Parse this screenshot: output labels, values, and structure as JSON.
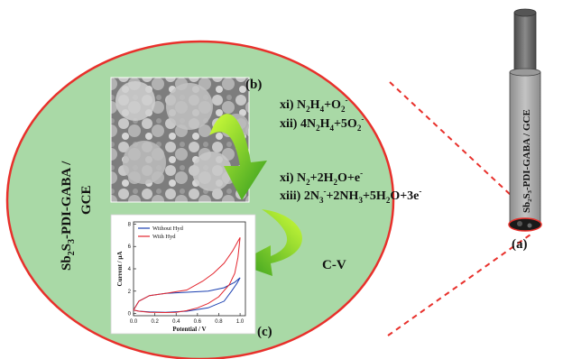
{
  "panel_labels": {
    "a": "(a)",
    "b": "(b)",
    "c": "(c)"
  },
  "electrode": {
    "label": "Sb₂S₃-PDI-GABA / GCE"
  },
  "ellipse": {
    "label_line1_prefix": "Sb",
    "label_line1_sub1": "2",
    "label_line1_mid": "S",
    "label_line1_sub2": "3",
    "label_line1_suffix": "-PDI-GABA /",
    "label_line2": "GCE"
  },
  "reactions": {
    "r1_prefix": "xi) N",
    "r1_sub1": "2",
    "r1_mid": "H",
    "r1_sub2": "4",
    "r1_tail": "+O",
    "r1_sub3": "2",
    "r1_sup": "-",
    "r2_prefix": "xii) 4N",
    "r2_sub1": "2",
    "r2_mid": "H",
    "r2_sub2": "4",
    "r2_tail": "+5O",
    "r2_sub3": "2",
    "r2_sup": "-",
    "r3_prefix": "xi) N",
    "r3_sub1": "2",
    "r3_mid": "+2H",
    "r3_sub2": "2",
    "r3_tail": "O+e",
    "r3_sup": "-",
    "r4_prefix": "xiii) 2N",
    "r4_sub1": "3",
    "r4_sup1": "-",
    "r4_mid": "+2NH",
    "r4_sub2": "3",
    "r4_tail": "+5H",
    "r4_sub3": "2",
    "r4_tail2": "O+3e",
    "r4_sup2": "-"
  },
  "cv_label": "C-V",
  "colors": {
    "ellipse_fill": "#a9d9a6",
    "ellipse_stroke": "#e8302b",
    "arrow_light": "#b7f02a",
    "arrow_dark": "#2f9a1e",
    "electrode_body": "#a6a6a6",
    "electrode_rod": "#6b6b6b",
    "series_without": "#1a3fb0",
    "series_with": "#e3262e"
  },
  "chart_data": {
    "type": "line",
    "xlabel": "Potential / V",
    "ylabel": "Current / µA",
    "xticks": [
      "0.0",
      "0.2",
      "0.4",
      "0.6",
      "0.8",
      "1.0"
    ],
    "yticks": [
      "0",
      "2",
      "4",
      "6",
      "8"
    ],
    "xlim": [
      0.0,
      1.05
    ],
    "ylim": [
      -0.2,
      8.2
    ],
    "legend": "top-left",
    "series": [
      {
        "name": "Without Hyd",
        "color": "#1a3fb0",
        "x": [
          0.0,
          0.05,
          0.15,
          0.3,
          0.5,
          0.7,
          0.85,
          0.95,
          1.0,
          1.0,
          0.97,
          0.92,
          0.85,
          0.7,
          0.5,
          0.3,
          0.15,
          0.05,
          0.0
        ],
        "y": [
          0.3,
          1.1,
          1.6,
          1.8,
          1.9,
          2.0,
          2.3,
          2.8,
          3.2,
          3.2,
          2.7,
          2.0,
          1.1,
          0.5,
          0.2,
          0.1,
          0.15,
          0.2,
          0.3
        ]
      },
      {
        "name": "With Hyd",
        "color": "#e3262e",
        "x": [
          0.0,
          0.05,
          0.15,
          0.3,
          0.5,
          0.65,
          0.75,
          0.85,
          0.93,
          1.0,
          1.0,
          0.98,
          0.95,
          0.9,
          0.8,
          0.7,
          0.6,
          0.5,
          0.4,
          0.3,
          0.15,
          0.05,
          0.0
        ],
        "y": [
          0.3,
          1.1,
          1.6,
          1.8,
          2.1,
          2.9,
          3.6,
          4.5,
          5.6,
          6.8,
          6.8,
          5.0,
          3.6,
          2.6,
          1.5,
          0.9,
          0.5,
          0.25,
          0.1,
          0.08,
          0.1,
          0.2,
          0.3
        ]
      }
    ]
  }
}
